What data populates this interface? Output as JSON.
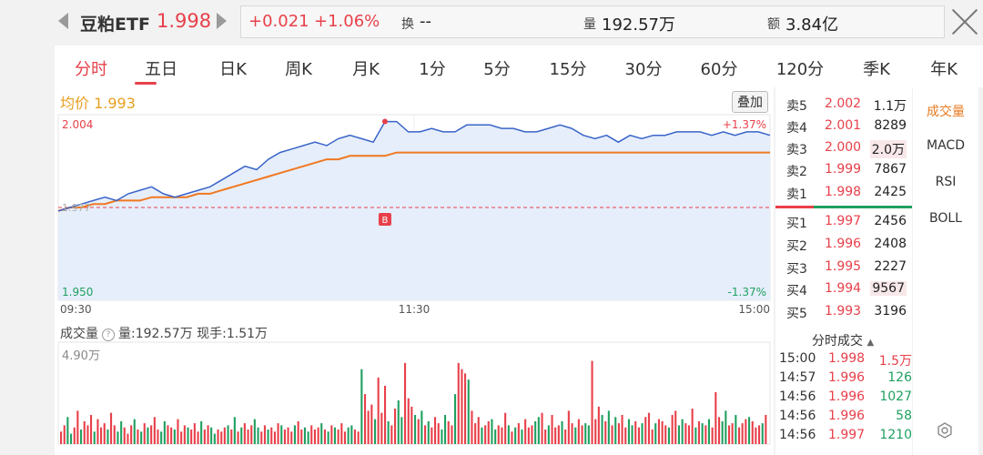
{
  "header": {
    "name": "豆粕ETF",
    "price": "1.998",
    "change": "+0.021",
    "change_pct": "+1.06%",
    "turnover_label": "换",
    "turnover_value": "--",
    "volume_label": "量",
    "volume_value": "192.57万",
    "amount_label": "额",
    "amount_value": "3.84亿"
  },
  "tabs": [
    "分时",
    "五日",
    "日K",
    "周K",
    "月K",
    "1分",
    "5分",
    "15分",
    "30分",
    "60分",
    "120分",
    "季K",
    "年K"
  ],
  "active_tab": "分时",
  "chart": {
    "avg_label": "均价 1.993",
    "overlay_label": "叠加",
    "ymax_label": "2.004",
    "ymin_label": "1.950",
    "pct_max_label": "+1.37%",
    "pct_min_label": "-1.37%",
    "mid_label": "1.977",
    "buy_marker": "B",
    "time_start": "09:30",
    "time_mid": "11:30",
    "time_end": "15:00",
    "volume_title": "成交量",
    "volume_info": "量:192.57万  现手:1.51万",
    "volume_max_label": "4.90万"
  },
  "chart_data": {
    "type": "line",
    "x_ticks": [
      "09:30",
      "11:30",
      "15:00"
    ],
    "ylim": [
      1.95,
      2.004
    ],
    "reference_price": 1.977,
    "series": [
      {
        "name": "价格",
        "values": [
          1.976,
          1.977,
          1.978,
          1.979,
          1.98,
          1.979,
          1.981,
          1.982,
          1.983,
          1.981,
          1.98,
          1.981,
          1.982,
          1.983,
          1.985,
          1.987,
          1.989,
          1.988,
          1.991,
          1.993,
          1.994,
          1.995,
          1.996,
          1.995,
          1.997,
          1.998,
          1.997,
          1.996,
          2.002,
          2.002,
          1.999,
          1.999,
          2.0,
          1.999,
          1.999,
          2.001,
          2.001,
          2.001,
          2.0,
          2.0,
          1.999,
          1.999,
          2.0,
          2.001,
          2.0,
          1.998,
          1.997,
          1.998,
          1.996,
          1.998,
          1.997,
          1.998,
          1.998,
          1.999,
          1.999,
          1.999,
          1.998,
          1.999,
          1.998,
          1.999,
          1.999,
          1.998
        ]
      },
      {
        "name": "均价",
        "values": [
          1.976,
          1.977,
          1.977,
          1.978,
          1.978,
          1.979,
          1.979,
          1.979,
          1.98,
          1.98,
          1.98,
          1.98,
          1.981,
          1.981,
          1.982,
          1.983,
          1.984,
          1.985,
          1.986,
          1.987,
          1.988,
          1.989,
          1.99,
          1.991,
          1.991,
          1.992,
          1.992,
          1.992,
          1.992,
          1.993,
          1.993,
          1.993,
          1.993,
          1.993,
          1.993,
          1.993,
          1.993,
          1.993,
          1.993,
          1.993,
          1.993,
          1.993,
          1.993,
          1.993,
          1.993,
          1.993,
          1.993,
          1.993,
          1.993,
          1.993,
          1.993,
          1.993,
          1.993,
          1.993,
          1.993,
          1.993,
          1.993,
          1.993,
          1.993,
          1.993,
          1.993,
          1.993
        ]
      }
    ],
    "volume": {
      "ymax": 4.9,
      "values": [
        0.6,
        0.9,
        1.3,
        0.5,
        0.8,
        1.6,
        0.7,
        1.1,
        0.9,
        1.4,
        0.6,
        1.2,
        0.8,
        1.0,
        0.7,
        1.5,
        0.9,
        0.6,
        1.1,
        0.8,
        0.5,
        0.9,
        1.2,
        0.7,
        0.6,
        1.0,
        0.8,
        0.9,
        1.3,
        0.7,
        0.6,
        1.1,
        0.9,
        0.8,
        0.7,
        1.2,
        0.6,
        0.9,
        0.8,
        0.7,
        1.0,
        0.6,
        1.1,
        0.7,
        0.9,
        0.8,
        0.5,
        0.7,
        0.6,
        0.8,
        0.9,
        0.7,
        1.3,
        0.6,
        0.8,
        1.0,
        0.7,
        0.9,
        1.2,
        0.8,
        0.6,
        0.9,
        0.7,
        0.8,
        0.6,
        1.0,
        0.9,
        0.7,
        0.8,
        0.6,
        0.9,
        1.1,
        0.7,
        0.8,
        0.6,
        0.9,
        0.7,
        0.8,
        1.0,
        0.7,
        0.6,
        0.9,
        0.8,
        0.7,
        1.0,
        0.6,
        0.8,
        0.9,
        0.7,
        0.6,
        3.6,
        2.4,
        1.6,
        1.9,
        1.2,
        3.2,
        1.5,
        2.8,
        1.1,
        0.9,
        1.7,
        2.1,
        1.3,
        3.9,
        2.2,
        1.8,
        1.4,
        1.2,
        1.6,
        0.9,
        1.1,
        0.8,
        1.3,
        1.0,
        0.7,
        1.4,
        1.1,
        0.9,
        2.4,
        3.9,
        3.6,
        3.4,
        3.1,
        1.6,
        1.0,
        1.3,
        0.8,
        0.9,
        1.1,
        1.2,
        0.7,
        0.9,
        0.8,
        1.5,
        0.9,
        0.6,
        0.8,
        1.0,
        0.7,
        1.2,
        0.8,
        0.9,
        1.1,
        1.3,
        1.5,
        0.7,
        0.9,
        1.4,
        0.8,
        0.9,
        1.1,
        0.7,
        1.6,
        1.0,
        0.8,
        1.2,
        0.9,
        1.0,
        0.9,
        4.0,
        1.2,
        1.8,
        1.4,
        1.1,
        1.6,
        0.9,
        1.3,
        1.0,
        1.4,
        0.8,
        1.2,
        0.9,
        1.1,
        0.8,
        1.0,
        1.3,
        1.5,
        0.7,
        1.0,
        1.2,
        1.1,
        0.9,
        0.8,
        1.4,
        1.6,
        0.9,
        1.2,
        1.0,
        0.9,
        1.7,
        0.8,
        1.1,
        1.0,
        0.9,
        1.2,
        0.8,
        2.5,
        1.3,
        1.1,
        1.6,
        0.9,
        1.0,
        1.4,
        0.8,
        1.0,
        1.2,
        1.3,
        1.1,
        0.8,
        0.9,
        1.0,
        1.4
      ]
    }
  },
  "order_book": {
    "asks": [
      {
        "label": "卖5",
        "price": "2.002",
        "vol": "1.1万"
      },
      {
        "label": "卖4",
        "price": "2.001",
        "vol": "8289"
      },
      {
        "label": "卖3",
        "price": "2.000",
        "vol": "2.0万"
      },
      {
        "label": "卖2",
        "price": "1.999",
        "vol": "7867"
      },
      {
        "label": "卖1",
        "price": "1.998",
        "vol": "2425"
      }
    ],
    "bids": [
      {
        "label": "买1",
        "price": "1.997",
        "vol": "2456"
      },
      {
        "label": "买2",
        "price": "1.996",
        "vol": "2408"
      },
      {
        "label": "买3",
        "price": "1.995",
        "vol": "2227"
      },
      {
        "label": "买4",
        "price": "1.994",
        "vol": "9567"
      },
      {
        "label": "买5",
        "price": "1.993",
        "vol": "3196"
      }
    ]
  },
  "trades": {
    "title": "分时成交",
    "rows": [
      {
        "time": "15:00",
        "price": "1.998",
        "vol": "1.5万",
        "color": "#e8404a"
      },
      {
        "time": "14:57",
        "price": "1.996",
        "vol": "126",
        "color": "#20a060"
      },
      {
        "time": "14:56",
        "price": "1.996",
        "vol": "1027",
        "color": "#20a060"
      },
      {
        "time": "14:56",
        "price": "1.996",
        "vol": "58",
        "color": "#20a060"
      },
      {
        "time": "14:56",
        "price": "1.997",
        "vol": "1210",
        "color": "#20a060"
      }
    ]
  },
  "side_menu": [
    "成交量",
    "MACD",
    "RSI",
    "BOLL"
  ],
  "side_active": "成交量",
  "colors": {
    "up": "#e8404a",
    "down": "#20a060",
    "price_line": "#3a64c8",
    "avg_line": "#f07820",
    "accent": "#e87a20"
  }
}
